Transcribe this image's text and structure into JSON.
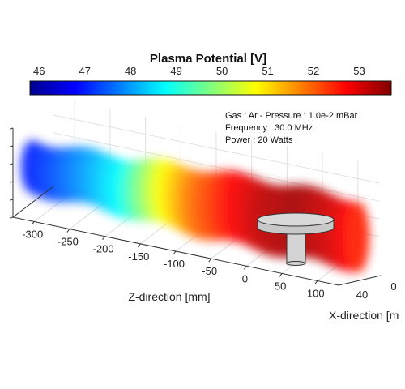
{
  "chart_data": {
    "type": "heatmap",
    "title": "Plasma Potential [V]",
    "colorbar": {
      "ticks": [
        46,
        47,
        48,
        49,
        50,
        51,
        52,
        53
      ],
      "range": [
        45.8,
        53.7
      ],
      "colormap": "jet"
    },
    "annotations": [
      "Gas : Ar - Pressure : 1.0e-2 mBar",
      "Frequency : 30.0 MHz",
      "Power : 20 Watts"
    ],
    "z_axis": {
      "label": "Z-direction [mm]",
      "ticks": [
        -300,
        -250,
        -200,
        -150,
        -100,
        -50,
        0,
        50,
        100
      ]
    },
    "x_axis": {
      "label": "X-direction [m",
      "ticks": [
        40,
        0
      ]
    },
    "grid": true,
    "profile": {
      "z": [
        -330,
        -300,
        -250,
        -200,
        -150,
        -100,
        -50,
        0,
        50,
        100,
        130
      ],
      "potential": [
        47.0,
        47.3,
        48.0,
        48.8,
        50.5,
        51.8,
        52.6,
        53.2,
        53.4,
        53.0,
        52.5
      ]
    }
  },
  "colors": {
    "pedestal": "#d4d4d4",
    "axis": "#333333",
    "grid": "#d9d9d9"
  }
}
